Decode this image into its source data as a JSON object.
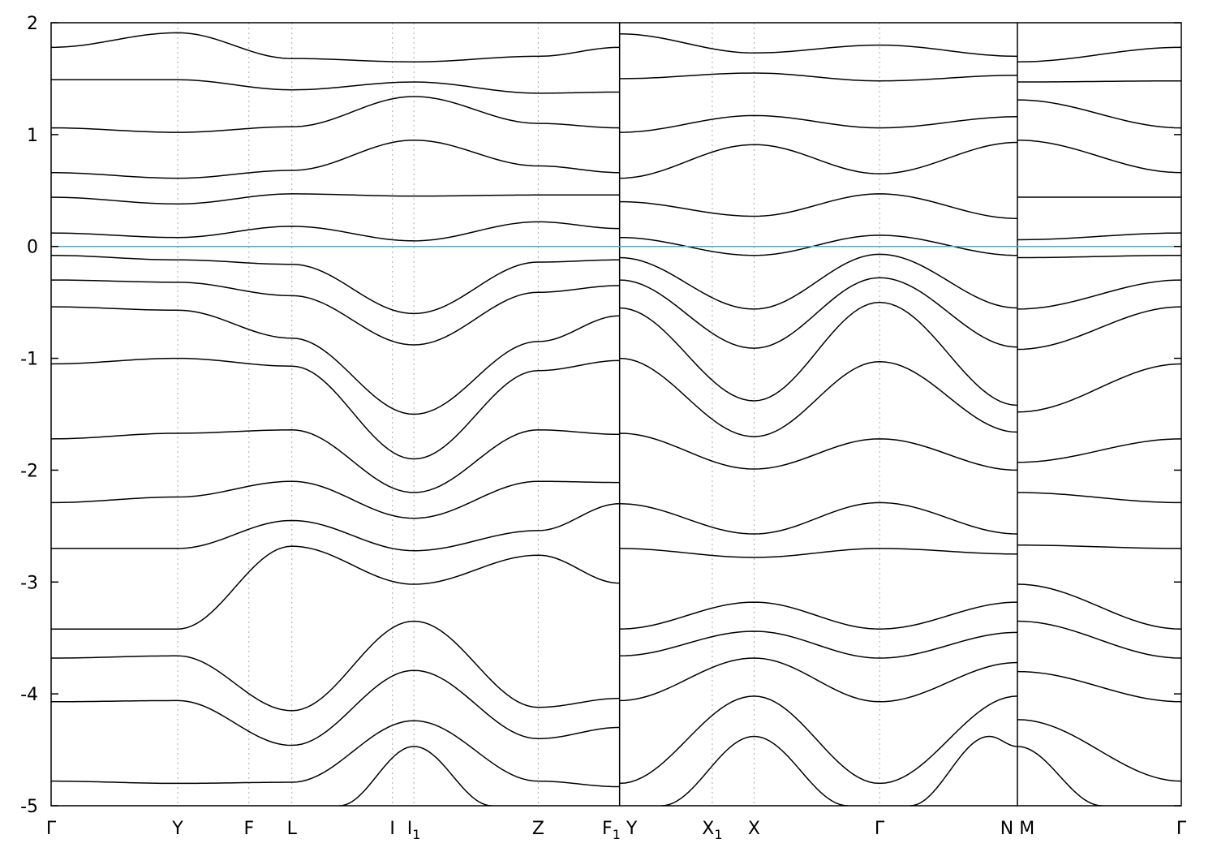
{
  "chart_data": {
    "type": "line",
    "title": "",
    "xlabel": "",
    "ylabel": "",
    "ylim": [
      -5,
      2
    ],
    "yticks": [
      -5,
      -4,
      -3,
      -2,
      -1,
      0,
      1,
      2
    ],
    "grid": "vertical dotted lines at high-symmetry points",
    "x_range": [
      0,
      10
    ],
    "kpoints": [
      {
        "x": 0.0,
        "label": "Γ"
      },
      {
        "x": 1.12,
        "label": "Y"
      },
      {
        "x": 1.75,
        "label": "F"
      },
      {
        "x": 2.13,
        "label": "L"
      },
      {
        "x": 3.02,
        "label": "I"
      },
      {
        "x": 3.21,
        "label": "I",
        "sub": "1"
      },
      {
        "x": 4.31,
        "label": "Z"
      },
      {
        "x": 5.03,
        "label": "F",
        "sub": "1",
        "suffix": " Y",
        "discontinuity": true
      },
      {
        "x": 5.85,
        "label": "X",
        "sub": "1"
      },
      {
        "x": 6.22,
        "label": "X"
      },
      {
        "x": 7.33,
        "label": "Γ"
      },
      {
        "x": 8.55,
        "label": "N",
        "suffix": " M",
        "discontinuity": true
      },
      {
        "x": 10.0,
        "label": "Γ"
      }
    ],
    "fermi_level": 0,
    "series": [
      {
        "x": [
          0,
          1.12,
          2.13,
          3.21,
          4.31,
          5.03,
          5.03,
          6.22,
          7.33,
          8.55,
          8.55,
          10
        ],
        "values": [
          1.78,
          1.91,
          1.68,
          1.65,
          1.7,
          1.78,
          1.9,
          1.73,
          1.8,
          1.7,
          1.65,
          1.78
        ]
      },
      {
        "x": [
          0,
          1.12,
          2.13,
          3.21,
          4.31,
          5.03,
          5.03,
          6.22,
          7.33,
          8.55,
          8.55,
          10
        ],
        "values": [
          1.49,
          1.49,
          1.4,
          1.47,
          1.37,
          1.38,
          1.5,
          1.55,
          1.48,
          1.53,
          1.47,
          1.48
        ]
      },
      {
        "x": [
          0,
          1.12,
          2.13,
          3.21,
          4.31,
          5.03,
          5.03,
          6.22,
          7.33,
          8.55,
          8.55,
          10
        ],
        "values": [
          1.06,
          1.02,
          1.07,
          1.34,
          1.1,
          1.06,
          1.02,
          1.17,
          1.06,
          1.16,
          1.31,
          1.06
        ]
      },
      {
        "x": [
          0,
          1.12,
          2.13,
          3.21,
          4.31,
          5.03,
          5.03,
          6.22,
          7.33,
          8.55,
          8.55,
          10
        ],
        "values": [
          0.66,
          0.61,
          0.68,
          0.95,
          0.72,
          0.66,
          0.61,
          0.91,
          0.65,
          0.93,
          0.95,
          0.66
        ]
      },
      {
        "x": [
          0,
          1.12,
          2.13,
          3.21,
          4.31,
          5.03,
          5.03,
          6.22,
          7.33,
          8.55,
          8.55,
          10
        ],
        "values": [
          0.44,
          0.38,
          0.47,
          0.45,
          0.46,
          0.46,
          0.4,
          0.27,
          0.47,
          0.25,
          0.44,
          0.44
        ]
      },
      {
        "x": [
          0,
          1.12,
          2.13,
          3.21,
          4.31,
          5.03,
          5.03,
          6.22,
          7.33,
          8.55,
          8.55,
          10
        ],
        "values": [
          0.12,
          0.08,
          0.18,
          0.05,
          0.22,
          0.16,
          0.08,
          -0.08,
          0.1,
          -0.08,
          0.06,
          0.12
        ]
      },
      {
        "x": [
          0,
          1.12,
          2.13,
          3.21,
          4.31,
          5.03,
          5.03,
          6.22,
          7.33,
          8.55,
          8.55,
          10
        ],
        "values": [
          -0.08,
          -0.12,
          -0.16,
          -0.6,
          -0.14,
          -0.12,
          -0.1,
          -0.56,
          -0.07,
          -0.55,
          -0.1,
          -0.08
        ]
      },
      {
        "x": [
          0,
          1.12,
          2.13,
          3.21,
          4.31,
          5.03,
          5.03,
          6.22,
          7.33,
          8.55,
          8.55,
          10
        ],
        "values": [
          -0.3,
          -0.32,
          -0.44,
          -0.88,
          -0.41,
          -0.35,
          -0.3,
          -0.91,
          -0.28,
          -0.9,
          -0.56,
          -0.3
        ]
      },
      {
        "x": [
          0,
          1.12,
          2.13,
          3.21,
          4.31,
          5.03,
          5.03,
          6.22,
          7.33,
          8.55,
          8.55,
          10
        ],
        "values": [
          -0.54,
          -0.57,
          -0.82,
          -1.5,
          -0.85,
          -0.62,
          -0.55,
          -1.38,
          -0.5,
          -1.42,
          -0.92,
          -0.54
        ]
      },
      {
        "x": [
          0,
          1.12,
          2.13,
          3.21,
          4.31,
          5.03,
          5.03,
          6.22,
          7.33,
          8.55,
          8.55,
          10
        ],
        "values": [
          -1.05,
          -1.0,
          -1.07,
          -1.9,
          -1.11,
          -1.02,
          -1.0,
          -1.7,
          -1.03,
          -1.66,
          -1.48,
          -1.05
        ]
      },
      {
        "x": [
          0,
          1.12,
          2.13,
          3.21,
          4.31,
          5.03,
          5.03,
          6.22,
          7.33,
          8.55,
          8.55,
          10
        ],
        "values": [
          -1.72,
          -1.67,
          -1.64,
          -2.2,
          -1.64,
          -1.68,
          -1.67,
          -1.99,
          -1.72,
          -2.0,
          -1.93,
          -1.72
        ]
      },
      {
        "x": [
          0,
          1.12,
          2.13,
          3.21,
          4.31,
          5.03,
          5.03,
          6.22,
          7.33,
          8.55,
          8.55,
          10
        ],
        "values": [
          -2.29,
          -2.24,
          -2.1,
          -2.43,
          -2.1,
          -2.11,
          -2.3,
          -2.57,
          -2.29,
          -2.57,
          -2.2,
          -2.29
        ]
      },
      {
        "x": [
          0,
          1.12,
          2.13,
          3.21,
          4.31,
          5.03,
          5.03,
          6.22,
          7.33,
          8.55,
          8.55,
          10
        ],
        "values": [
          -2.7,
          -2.7,
          -2.45,
          -2.72,
          -2.54,
          -2.3,
          -2.7,
          -2.78,
          -2.7,
          -2.75,
          -2.67,
          -2.7
        ]
      },
      {
        "x": [
          0,
          1.12,
          2.13,
          3.21,
          4.31,
          5.03,
          5.03,
          6.22,
          7.33,
          8.55,
          8.55,
          10
        ],
        "values": [
          -3.42,
          -3.42,
          -2.68,
          -3.02,
          -2.76,
          -3.01,
          -3.42,
          -3.18,
          -3.42,
          -3.18,
          -3.02,
          -3.42
        ]
      },
      {
        "x": [
          0,
          1.12,
          2.13,
          3.21,
          4.31,
          5.03,
          5.03,
          6.22,
          7.33,
          8.55,
          8.55,
          10
        ],
        "values": [
          -3.68,
          -3.66,
          -4.15,
          -3.35,
          -4.12,
          -4.04,
          -3.66,
          -3.44,
          -3.68,
          -3.45,
          -3.35,
          -3.68
        ]
      },
      {
        "x": [
          0,
          1.12,
          2.13,
          3.21,
          4.31,
          5.03,
          5.03,
          6.22,
          7.33,
          8.55,
          8.55,
          10
        ],
        "values": [
          -4.07,
          -4.06,
          -4.46,
          -3.79,
          -4.4,
          -4.3,
          -4.06,
          -3.68,
          -4.07,
          -3.72,
          -3.8,
          -4.07
        ]
      },
      {
        "x": [
          0,
          1.12,
          2.13,
          3.21,
          4.31,
          5.03,
          5.03,
          6.22,
          7.33,
          8.55,
          8.55,
          10
        ],
        "values": [
          -4.78,
          -4.8,
          -4.79,
          -4.24,
          -4.78,
          -4.83,
          -4.8,
          -4.02,
          -4.8,
          -4.02,
          -4.23,
          -4.78
        ]
      },
      {
        "x": [
          2.55,
          3.21,
          3.9
        ],
        "values": [
          -5.0,
          -4.47,
          -5.0
        ]
      },
      {
        "x": [
          5.4,
          6.22,
          7.05
        ],
        "values": [
          -5.0,
          -4.38,
          -5.0
        ]
      },
      {
        "x": [
          7.6,
          8.3,
          8.55,
          9.3
        ],
        "values": [
          -5.0,
          -4.38,
          -4.47,
          -5.0
        ]
      }
    ]
  }
}
